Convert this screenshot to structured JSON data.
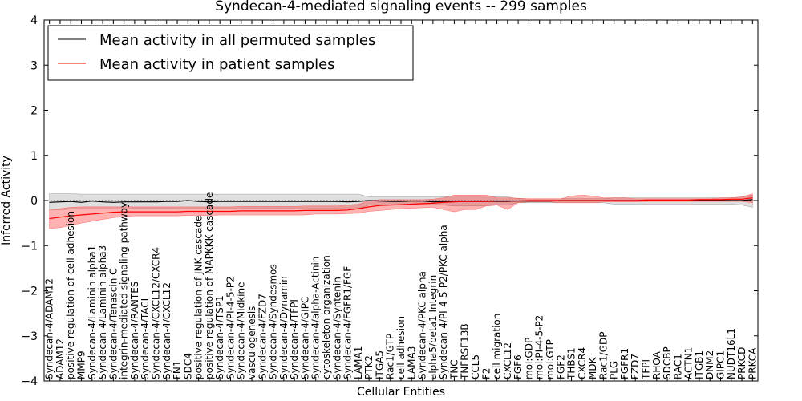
{
  "chart_data": {
    "type": "line",
    "title": "Syndecan-4-mediated signaling events -- 299 samples",
    "xlabel": "Cellular Entities",
    "ylabel": "Inferred Activity",
    "ylim": [
      -4,
      4
    ],
    "yticks": [
      -4,
      -3,
      -2,
      -1,
      0,
      1,
      2,
      3,
      4
    ],
    "legend_position": "top-left",
    "categories": [
      "Syndecan-4/ADAM12",
      "ADAM12",
      "positive regulation of cell adhesion",
      "MMP9",
      "Syndecan-4/Laminin alpha1",
      "Syndecan-4/Laminin alpha3",
      "Syndecan-4/Tenascin C",
      "integrin-mediated signaling pathway",
      "Syndecan-4/RANTES",
      "Syndecan-4/TACI",
      "Syndecan-4/CXCL12/CXCR4",
      "Syndecan-4/CXCL12",
      "FN1",
      "SDC4",
      "positive regulation of JNK cascade",
      "positive regulation of MAPKKK cascade",
      "Syndecan-4/TSP1",
      "Syndecan-4/PI-4-5-P2",
      "Syndecan-4/Midkine",
      "vasculogenesis",
      "Syndecan-4/FZD7",
      "Syndecan-4/Syndesmos",
      "Syndecan-4/Dynamin",
      "Syndecan-4/TFPI",
      "Syndecan-4/GIPC",
      "Syndecan-4/alpha-Actinin",
      "cytoskeleton organization",
      "Syndecan-4/Syntenin",
      "Syndecan-4/FGFR1/FGF",
      "LAMA1",
      "PTK2",
      "ITGA5",
      "Rac1/GTP",
      "cell adhesion",
      "LAMA3",
      "Syndecan-4/PKC alpha",
      "alpha5/beta1 Integrin",
      "Syndecan-4/PI-4-5-P2/PKC alpha",
      "TNC",
      "TNFRSF13B",
      "CCL5",
      "F2",
      "cell migration",
      "CXCL12",
      "FGF6",
      "mol:GDP",
      "mol:PI-4-5-P2",
      "mol:GTP",
      "FGF2",
      "THBS1",
      "CXCR4",
      "MDK",
      "Rac1/GDP",
      "PLG",
      "FGFR1",
      "FZD7",
      "TFPI",
      "RHOA",
      "SDCBP",
      "RAC1",
      "ACTN1",
      "ITGB1",
      "DNM2",
      "GIPC1",
      "NUDT16L1",
      "PRKCD",
      "PRKCA"
    ],
    "series": [
      {
        "name": "Mean activity in all permuted samples",
        "color": "#000000",
        "values": [
          -0.04,
          -0.03,
          -0.02,
          -0.04,
          -0.01,
          -0.03,
          -0.04,
          -0.03,
          -0.03,
          -0.03,
          -0.03,
          -0.02,
          -0.02,
          0.0,
          -0.02,
          -0.03,
          -0.02,
          -0.02,
          -0.02,
          -0.02,
          -0.02,
          -0.02,
          -0.02,
          -0.02,
          -0.02,
          -0.02,
          -0.02,
          -0.02,
          -0.03,
          -0.02,
          0.0,
          -0.01,
          -0.02,
          -0.02,
          -0.01,
          -0.01,
          -0.03,
          -0.02,
          -0.02,
          -0.02,
          -0.02,
          -0.02,
          -0.02,
          -0.02,
          -0.01,
          -0.01,
          -0.01,
          -0.01,
          0.0,
          0.0,
          0.0,
          0.0,
          0.0,
          0.0,
          0.0,
          0.0,
          0.0,
          0.0,
          0.0,
          0.0,
          0.0,
          0.0,
          0.0,
          0.0,
          0.0,
          0.0,
          0.02
        ],
        "band_lower": [
          -0.2,
          -0.2,
          -0.19,
          -0.19,
          -0.19,
          -0.19,
          -0.19,
          -0.18,
          -0.18,
          -0.18,
          -0.18,
          -0.18,
          -0.18,
          -0.18,
          -0.18,
          -0.18,
          -0.18,
          -0.18,
          -0.18,
          -0.18,
          -0.18,
          -0.18,
          -0.18,
          -0.18,
          -0.18,
          -0.18,
          -0.18,
          -0.18,
          -0.18,
          -0.18,
          -0.1,
          -0.1,
          -0.1,
          -0.1,
          -0.1,
          -0.1,
          -0.1,
          -0.1,
          -0.12,
          -0.12,
          -0.12,
          -0.12,
          -0.1,
          -0.1,
          -0.05,
          -0.05,
          -0.05,
          -0.05,
          -0.05,
          -0.05,
          -0.05,
          -0.05,
          -0.05,
          -0.08,
          -0.08,
          -0.08,
          -0.08,
          -0.08,
          -0.08,
          -0.08,
          -0.08,
          -0.08,
          -0.08,
          -0.08,
          -0.08,
          -0.1,
          -0.15
        ],
        "band_upper": [
          0.15,
          0.15,
          0.15,
          0.14,
          0.14,
          0.14,
          0.14,
          0.14,
          0.14,
          0.14,
          0.14,
          0.14,
          0.14,
          0.14,
          0.14,
          0.14,
          0.14,
          0.14,
          0.14,
          0.14,
          0.14,
          0.14,
          0.14,
          0.14,
          0.14,
          0.14,
          0.14,
          0.14,
          0.14,
          0.14,
          0.08,
          0.08,
          0.08,
          0.08,
          0.08,
          0.08,
          0.08,
          0.08,
          0.1,
          0.1,
          0.1,
          0.1,
          0.08,
          0.08,
          0.04,
          0.04,
          0.04,
          0.04,
          0.04,
          0.04,
          0.04,
          0.04,
          0.04,
          0.06,
          0.06,
          0.06,
          0.06,
          0.06,
          0.06,
          0.06,
          0.06,
          0.06,
          0.06,
          0.06,
          0.06,
          0.08,
          0.12
        ]
      },
      {
        "name": "Mean activity in patient samples",
        "color": "#ff0000",
        "values": [
          -0.4,
          -0.37,
          -0.34,
          -0.32,
          -0.3,
          -0.28,
          -0.26,
          -0.25,
          -0.25,
          -0.25,
          -0.25,
          -0.25,
          -0.25,
          -0.24,
          -0.24,
          -0.24,
          -0.24,
          -0.24,
          -0.23,
          -0.23,
          -0.23,
          -0.23,
          -0.23,
          -0.23,
          -0.22,
          -0.22,
          -0.22,
          -0.22,
          -0.21,
          -0.18,
          -0.14,
          -0.11,
          -0.1,
          -0.09,
          -0.08,
          -0.07,
          -0.06,
          -0.04,
          -0.03,
          -0.02,
          -0.02,
          -0.02,
          -0.01,
          -0.01,
          -0.01,
          0.0,
          0.0,
          0.0,
          0.0,
          0.0,
          0.0,
          0.0,
          0.0,
          0.0,
          0.0,
          0.0,
          0.01,
          0.01,
          0.01,
          0.01,
          0.01,
          0.02,
          0.02,
          0.02,
          0.03,
          0.03,
          0.06
        ],
        "band_lower": [
          -0.62,
          -0.6,
          -0.55,
          -0.5,
          -0.46,
          -0.42,
          -0.38,
          -0.36,
          -0.34,
          -0.34,
          -0.34,
          -0.34,
          -0.34,
          -0.33,
          -0.33,
          -0.33,
          -0.32,
          -0.32,
          -0.32,
          -0.32,
          -0.32,
          -0.32,
          -0.32,
          -0.32,
          -0.32,
          -0.3,
          -0.3,
          -0.3,
          -0.29,
          -0.28,
          -0.24,
          -0.22,
          -0.2,
          -0.18,
          -0.17,
          -0.16,
          -0.15,
          -0.2,
          -0.25,
          -0.2,
          -0.2,
          -0.12,
          -0.1,
          -0.2,
          -0.05,
          -0.03,
          -0.03,
          -0.03,
          -0.05,
          -0.05,
          -0.05,
          -0.05,
          -0.03,
          -0.03,
          -0.03,
          -0.03,
          -0.02,
          -0.02,
          -0.02,
          -0.02,
          -0.02,
          -0.02,
          -0.02,
          -0.02,
          -0.02,
          -0.02,
          -0.05
        ],
        "band_upper": [
          -0.2,
          -0.18,
          -0.15,
          -0.14,
          -0.14,
          -0.14,
          -0.14,
          -0.14,
          -0.14,
          -0.14,
          -0.14,
          -0.14,
          -0.14,
          -0.14,
          -0.14,
          -0.14,
          -0.14,
          -0.14,
          -0.13,
          -0.13,
          -0.13,
          -0.13,
          -0.13,
          -0.13,
          -0.12,
          -0.12,
          -0.12,
          -0.12,
          -0.1,
          -0.08,
          0.0,
          0.02,
          0.02,
          0.02,
          0.02,
          0.02,
          0.03,
          0.06,
          0.12,
          0.12,
          0.12,
          0.12,
          0.06,
          0.06,
          0.05,
          0.04,
          0.04,
          0.04,
          0.04,
          0.1,
          0.12,
          0.1,
          0.06,
          0.06,
          0.06,
          0.04,
          0.04,
          0.04,
          0.04,
          0.04,
          0.04,
          0.04,
          0.04,
          0.06,
          0.06,
          0.08,
          0.15
        ]
      }
    ]
  }
}
